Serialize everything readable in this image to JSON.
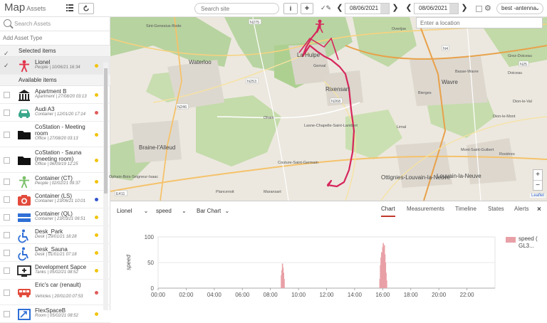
{
  "header": {
    "title": "Map",
    "subtitle": "Assets",
    "search_placeholder": "Search site",
    "info_label": "i",
    "add_label": "+",
    "date_from": "08/06/2021",
    "date_to": "08/06/2021",
    "antenna_value": "best -antenna"
  },
  "sidebar": {
    "search_placeholder": "Search Assets",
    "add_asset_type": "Add Asset Type",
    "selected_header": "Selected items",
    "available_header": "Available items",
    "selected_items": [
      {
        "name": "Lionel",
        "meta": "People  |  10/06/21 16:34",
        "icon": "person-icon",
        "color": "#e33349",
        "dot": "#f1c40f"
      }
    ],
    "items": [
      {
        "name": "Apartment B",
        "meta": "Apartment  |  27/08/20 03:13",
        "icon": "building-icon",
        "color": "#222222",
        "dot": "#f1c40f"
      },
      {
        "name": "Audi A3",
        "meta": "Container  |  12/01/20 17:14",
        "icon": "car-icon",
        "color": "#3aa88c",
        "dot": "#e05c5c"
      },
      {
        "name": "CoStation - Meeting room",
        "meta": "Office  |  27/08/20 03:13",
        "icon": "folder-icon",
        "color": "#111111",
        "dot": "#f1c40f"
      },
      {
        "name": "CoStation - Sauna (meeting room)",
        "meta": "Office  |  06/09/19 12:25",
        "icon": "folder-icon",
        "color": "#111111",
        "dot": "#f1c40f"
      },
      {
        "name": "Container (CT)",
        "meta": "People  |  02/02/21 09:37",
        "icon": "person-icon",
        "color": "#7cc06a",
        "dot": "#f1c40f"
      },
      {
        "name": "Container (LS)",
        "meta": "Container  |  23/06/21 10:01",
        "icon": "camera-icon",
        "color": "#e24a3b",
        "dot": "#3355cc"
      },
      {
        "name": "Container (QL)",
        "meta": "Container  |  23/03/21 06:51",
        "icon": "stack-icon",
        "color": "#2f6fd6",
        "dot": "#f1c40f"
      },
      {
        "name": "Desk_Park",
        "meta": "Desk  |  29/01/21 18:28",
        "icon": "wheelchair-icon",
        "color": "#2f6fd6",
        "dot": "#f1c40f"
      },
      {
        "name": "Desk_Sauna",
        "meta": "Desk  |  01/01/21 07:18",
        "icon": "wheelchair-icon",
        "color": "#2f6fd6",
        "dot": "#f1c40f"
      },
      {
        "name": "Development Sapce",
        "meta": "Tanks  |  05/02/21 08:52",
        "icon": "monitor-icon",
        "color": "#222222",
        "dot": "#f1c40f"
      },
      {
        "name": "Eric's car (renault)",
        "meta": "Vehicles  |  20/01/20 07:53",
        "icon": "van-icon",
        "color": "#e24a3b",
        "dot": "#e05c5c"
      },
      {
        "name": "FlexSpaceB",
        "meta": "Room  |  05/02/21 08:52",
        "icon": "room-icon",
        "color": "#2f6fd6",
        "dot": "#f1c40f"
      }
    ]
  },
  "map": {
    "location_placeholder": "Enter a location",
    "attribution": "Leaflet",
    "labels": [
      {
        "text": "Sint-Genesius-Rode",
        "cls": "town"
      },
      {
        "text": "Waterloo",
        "cls": "city"
      },
      {
        "text": "Braine-l'Alleud",
        "cls": "city"
      },
      {
        "text": "La Hulpe",
        "cls": "city"
      },
      {
        "text": "Genval",
        "cls": "town"
      },
      {
        "text": "Rixensart",
        "cls": "city"
      },
      {
        "text": "Wavre",
        "cls": "city"
      },
      {
        "text": "Bierges",
        "cls": "town"
      },
      {
        "text": "Lasne-Chapelle-Saint-Lambert",
        "cls": "town"
      },
      {
        "text": "Ohain",
        "cls": "town"
      },
      {
        "text": "Plancenoit",
        "cls": "town"
      },
      {
        "text": "Maransart",
        "cls": "town"
      },
      {
        "text": "Couture-Saint-Germain",
        "cls": "town"
      },
      {
        "text": "Ottignies-Louvain-la-Neuve",
        "cls": "city"
      },
      {
        "text": "Louvain-la-Neuve",
        "cls": "city"
      },
      {
        "text": "Ophain-Bois-Seigneur-Isaac",
        "cls": "town"
      },
      {
        "text": "Limal",
        "cls": "town"
      },
      {
        "text": "Dion-le-Mont",
        "cls": "town"
      },
      {
        "text": "Basse-Wavre",
        "cls": "town"
      },
      {
        "text": "Dion-le-Val",
        "cls": "town"
      },
      {
        "text": "Grez-Doiceau",
        "cls": "town"
      },
      {
        "text": "Doiceau",
        "cls": "town"
      },
      {
        "text": "Mont-Saint-Guibert",
        "cls": "town"
      },
      {
        "text": "Rosières",
        "cls": "town"
      },
      {
        "text": "Overijse",
        "cls": "town"
      },
      {
        "text": "N275",
        "cls": "road"
      },
      {
        "text": "N253",
        "cls": "road"
      },
      {
        "text": "N246",
        "cls": "road"
      },
      {
        "text": "N4",
        "cls": "road"
      },
      {
        "text": "E411",
        "cls": "road"
      },
      {
        "text": "N25",
        "cls": "road"
      },
      {
        "text": "N268",
        "cls": "road"
      }
    ]
  },
  "panel": {
    "asset_select": "Lionel",
    "metric_select": "speed",
    "chart_type_select": "Bar Chart",
    "tabs": [
      "Chart",
      "Measurements",
      "Timeline",
      "States",
      "Alerts"
    ],
    "active_tab": "Chart",
    "close_label": "×"
  },
  "chart_data": {
    "type": "bar",
    "ylabel": "speed",
    "ylim": [
      0,
      100
    ],
    "yticks": [
      0,
      50,
      100
    ],
    "xticks": [
      "00:00",
      "02:00",
      "04:00",
      "06:00",
      "08:00",
      "10:00",
      "12:00",
      "14:00",
      "16:00",
      "18:00",
      "20:00",
      "22:00"
    ],
    "xlim_hours": [
      0,
      24
    ],
    "series": [
      {
        "name": "speed ( GL3...",
        "color": "#e8a0a6",
        "points": [
          {
            "h": 8.78,
            "v": 25
          },
          {
            "h": 8.82,
            "v": 35
          },
          {
            "h": 8.86,
            "v": 48
          },
          {
            "h": 8.9,
            "v": 40
          },
          {
            "h": 8.94,
            "v": 30
          },
          {
            "h": 8.98,
            "v": 18
          },
          {
            "h": 15.8,
            "v": 18
          },
          {
            "h": 15.84,
            "v": 45
          },
          {
            "h": 15.88,
            "v": 60
          },
          {
            "h": 15.92,
            "v": 70
          },
          {
            "h": 15.96,
            "v": 55
          },
          {
            "h": 16.0,
            "v": 80
          },
          {
            "h": 16.04,
            "v": 88
          },
          {
            "h": 16.08,
            "v": 75
          },
          {
            "h": 16.12,
            "v": 84
          },
          {
            "h": 16.16,
            "v": 66
          },
          {
            "h": 16.2,
            "v": 50
          },
          {
            "h": 16.24,
            "v": 30
          },
          {
            "h": 16.28,
            "v": 15
          }
        ]
      }
    ]
  }
}
